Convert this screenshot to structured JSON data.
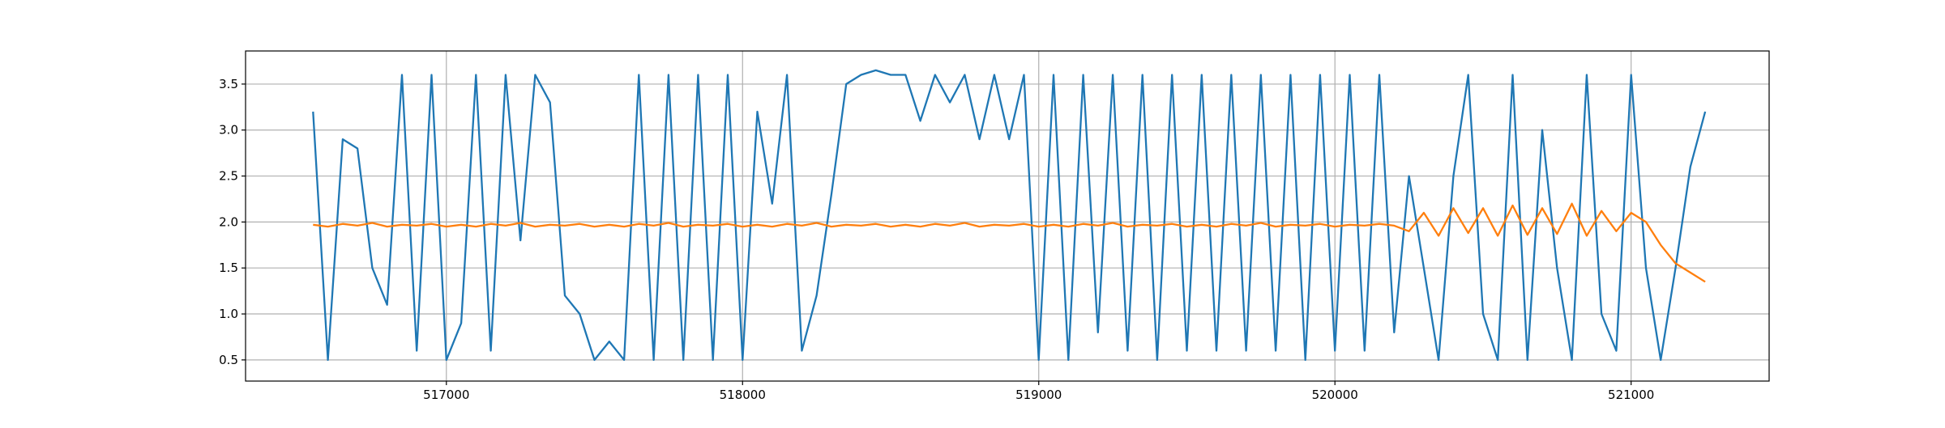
{
  "chart_data": {
    "type": "line",
    "x": [
      516550,
      516600,
      516650,
      516700,
      516750,
      516800,
      516850,
      516900,
      516950,
      517000,
      517050,
      517100,
      517150,
      517200,
      517250,
      517300,
      517350,
      517400,
      517450,
      517500,
      517550,
      517600,
      517650,
      517700,
      517750,
      517800,
      517850,
      517900,
      517950,
      518000,
      518050,
      518100,
      518150,
      518200,
      518250,
      518300,
      518350,
      518400,
      518450,
      518500,
      518550,
      518600,
      518650,
      518700,
      518750,
      518800,
      518850,
      518900,
      518950,
      519000,
      519050,
      519100,
      519150,
      519200,
      519250,
      519300,
      519350,
      519400,
      519450,
      519500,
      519550,
      519600,
      519650,
      519700,
      519750,
      519800,
      519850,
      519900,
      519950,
      520000,
      520050,
      520100,
      520150,
      520200,
      520250,
      520300,
      520350,
      520400,
      520450,
      520500,
      520550,
      520600,
      520650,
      520700,
      520750,
      520800,
      520850,
      520900,
      520950,
      521000,
      521050,
      521100,
      521150,
      521200,
      521250
    ],
    "series": [
      {
        "color": "#1f77b4",
        "values": [
          3.2,
          0.5,
          2.9,
          2.8,
          1.5,
          1.1,
          3.6,
          0.6,
          3.6,
          0.5,
          0.9,
          3.6,
          0.6,
          3.6,
          1.8,
          3.6,
          3.3,
          1.2,
          1.0,
          0.5,
          0.7,
          0.5,
          3.6,
          0.5,
          3.6,
          0.5,
          3.6,
          0.5,
          3.6,
          0.5,
          3.2,
          2.2,
          3.6,
          0.6,
          1.2,
          2.3,
          3.5,
          3.6,
          3.65,
          3.6,
          3.6,
          3.1,
          3.6,
          3.3,
          3.6,
          2.9,
          3.6,
          2.9,
          3.6,
          0.5,
          3.6,
          0.5,
          3.6,
          0.8,
          3.6,
          0.6,
          3.6,
          0.5,
          3.6,
          0.6,
          3.6,
          0.6,
          3.6,
          0.6,
          3.6,
          0.6,
          3.6,
          0.5,
          3.6,
          0.6,
          3.6,
          0.6,
          3.6,
          0.8,
          2.5,
          1.5,
          0.5,
          2.5,
          3.6,
          1.0,
          0.5,
          3.6,
          0.5,
          3.0,
          1.5,
          0.5,
          3.6,
          1.0,
          0.6,
          3.6,
          1.5,
          0.5,
          1.5,
          2.6,
          3.2
        ]
      },
      {
        "color": "#ff7f0e",
        "values": [
          1.97,
          1.95,
          1.98,
          1.96,
          1.99,
          1.95,
          1.97,
          1.96,
          1.98,
          1.95,
          1.97,
          1.95,
          1.98,
          1.96,
          1.99,
          1.95,
          1.97,
          1.96,
          1.98,
          1.95,
          1.97,
          1.95,
          1.98,
          1.96,
          1.99,
          1.95,
          1.97,
          1.96,
          1.98,
          1.95,
          1.97,
          1.95,
          1.98,
          1.96,
          1.99,
          1.95,
          1.97,
          1.96,
          1.98,
          1.95,
          1.97,
          1.95,
          1.98,
          1.96,
          1.99,
          1.95,
          1.97,
          1.96,
          1.98,
          1.95,
          1.97,
          1.95,
          1.98,
          1.96,
          1.99,
          1.95,
          1.97,
          1.96,
          1.98,
          1.95,
          1.97,
          1.95,
          1.98,
          1.96,
          1.99,
          1.95,
          1.97,
          1.96,
          1.98,
          1.95,
          1.97,
          1.96,
          1.98,
          1.96,
          1.9,
          2.1,
          1.85,
          2.15,
          1.88,
          2.15,
          1.85,
          2.18,
          1.86,
          2.15,
          1.87,
          2.2,
          1.85,
          2.12,
          1.9,
          2.1,
          2.0,
          1.75,
          1.55,
          1.45,
          1.35
        ]
      }
    ],
    "xlim": [
      516322,
      521466
    ],
    "ylim": [
      0.27,
      3.86
    ],
    "xticks": [
      517000,
      518000,
      519000,
      520000,
      521000
    ],
    "yticks": [
      0.5,
      {
        "value": 1,
        "label": "1.0"
      },
      1.5,
      {
        "value": 2,
        "label": "2.0"
      },
      2.5,
      {
        "value": 3,
        "label": "3.0"
      },
      3.5
    ],
    "grid": true
  }
}
